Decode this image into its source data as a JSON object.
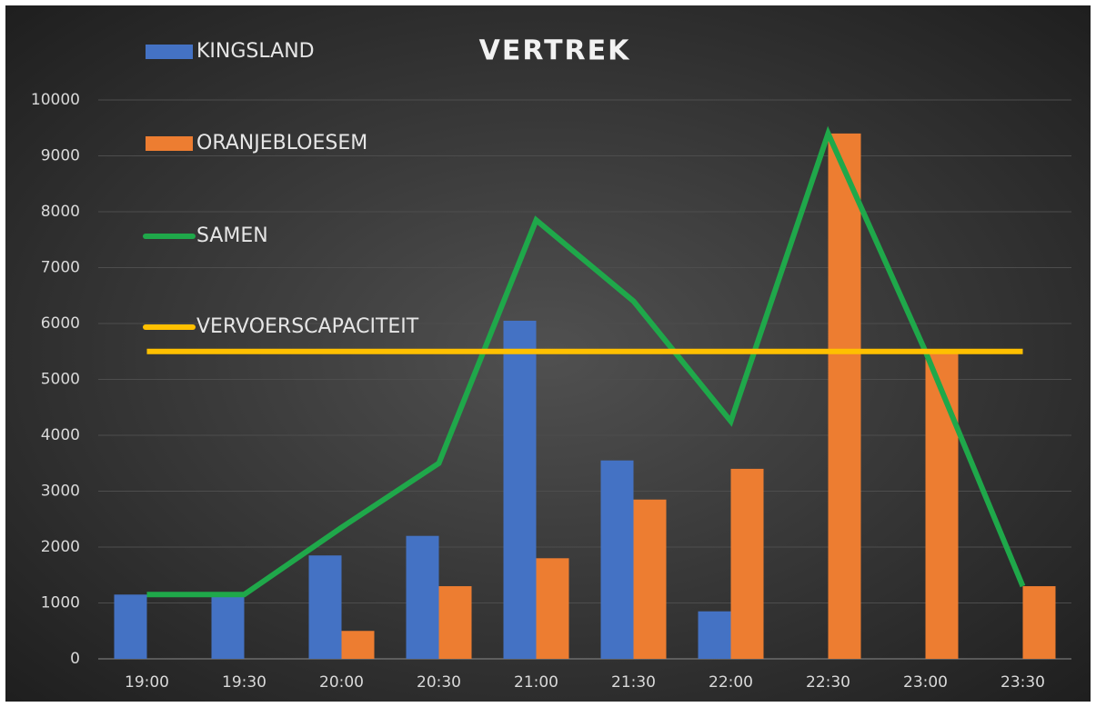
{
  "chart_data": {
    "type": "bar-line",
    "title": "VERTREK",
    "categories": [
      "19:00",
      "19:30",
      "20:00",
      "20:30",
      "21:00",
      "21:30",
      "22:00",
      "22:30",
      "23:00",
      "23:30"
    ],
    "series": [
      {
        "name": "KINGSLAND",
        "type": "bar",
        "color": "#4472c4",
        "values": [
          1150,
          1150,
          1850,
          2200,
          6050,
          3550,
          850,
          0,
          0,
          0
        ]
      },
      {
        "name": "ORANJEBLOESEM",
        "type": "bar",
        "color": "#ed7d31",
        "values": [
          0,
          0,
          500,
          1300,
          1800,
          2850,
          3400,
          9400,
          5500,
          1300
        ]
      },
      {
        "name": "SAMEN",
        "type": "line",
        "color": "#1fa84a",
        "values": [
          1150,
          1150,
          2350,
          3500,
          7850,
          6400,
          4250,
          9400,
          5500,
          1300
        ]
      },
      {
        "name": "VERVOERSCAPACITEIT",
        "type": "line",
        "color": "#ffc000",
        "values": [
          5500,
          5500,
          5500,
          5500,
          5500,
          5500,
          5500,
          5500,
          5500,
          5500
        ]
      }
    ],
    "ylim": [
      0,
      10000
    ],
    "yticks": [
      0,
      1000,
      2000,
      3000,
      4000,
      5000,
      6000,
      7000,
      8000,
      9000,
      10000
    ],
    "grid": true
  }
}
